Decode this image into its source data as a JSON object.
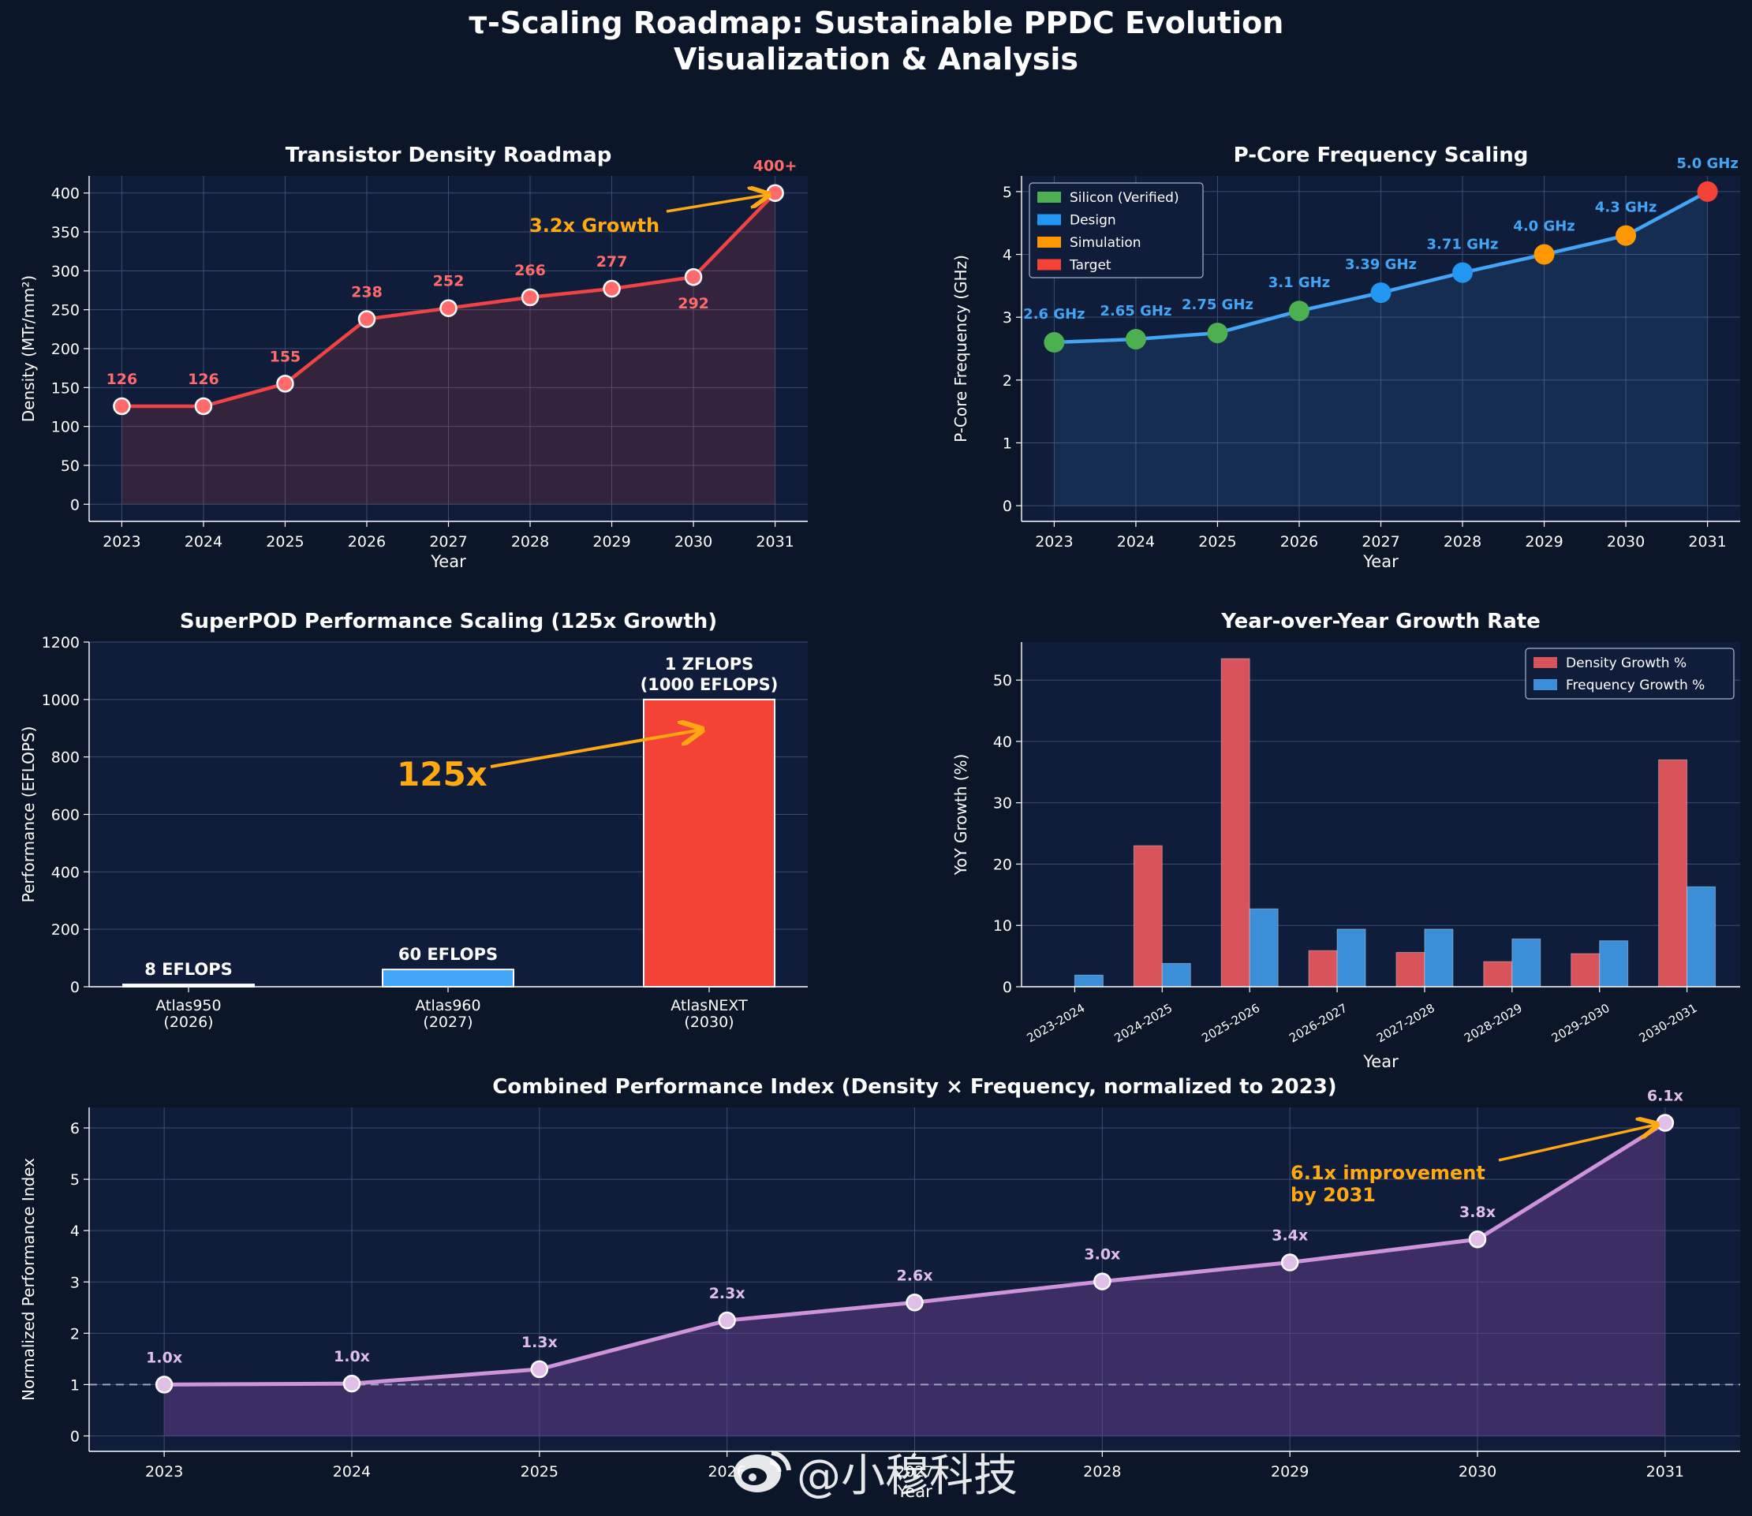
{
  "page": {
    "title_line1": "τ-Scaling Roadmap: Sustainable PPDC Evolution",
    "title_line2": "Visualization & Analysis",
    "watermark": "@小穆科技"
  },
  "colors": {
    "background": "#0b1628",
    "panel": "#0f1d3b",
    "density": "#f04343",
    "density_label": "#ff6b6b",
    "frequency": "#42a5f5",
    "silicon": "#4caf50",
    "design": "#2196f3",
    "simulation": "#ff9800",
    "target": "#f44336",
    "combined": "#ce93d8",
    "annotation": "#ffa812",
    "grid": "#3c4d6e",
    "text": "#ffffff"
  },
  "chart_data": [
    {
      "id": "density",
      "type": "line",
      "title": "Transistor Density Roadmap",
      "xlabel": "Year",
      "ylabel": "Density (MTr/mm²)",
      "x": [
        2023,
        2024,
        2025,
        2026,
        2027,
        2028,
        2029,
        2030,
        2031
      ],
      "y": [
        126,
        126,
        155,
        238,
        252,
        266,
        277,
        292,
        400
      ],
      "point_labels": [
        "126",
        "126",
        "155",
        "238",
        "252",
        "266",
        "277",
        "292",
        "400+"
      ],
      "yticks": [
        0,
        50,
        100,
        150,
        200,
        250,
        300,
        350,
        400
      ],
      "ylim": [
        -22,
        422
      ],
      "annotation": "3.2x Growth",
      "grid": true,
      "fill": true
    },
    {
      "id": "frequency",
      "type": "line",
      "title": "P-Core Frequency Scaling",
      "xlabel": "Year",
      "ylabel": "P-Core Frequency (GHz)",
      "x": [
        2023,
        2024,
        2025,
        2026,
        2027,
        2028,
        2029,
        2030,
        2031
      ],
      "y": [
        2.6,
        2.65,
        2.75,
        3.1,
        3.39,
        3.71,
        4.0,
        4.3,
        5.0
      ],
      "point_labels": [
        "2.6 GHz",
        "2.65 GHz",
        "2.75 GHz",
        "3.1 GHz",
        "3.39 GHz",
        "3.71 GHz",
        "4.0 GHz",
        "4.3 GHz",
        "5.0 GHz"
      ],
      "point_status": [
        "silicon",
        "silicon",
        "silicon",
        "silicon",
        "design",
        "design",
        "simulation",
        "simulation",
        "target"
      ],
      "legend": [
        {
          "key": "silicon",
          "label": "Silicon (Verified)"
        },
        {
          "key": "design",
          "label": "Design"
        },
        {
          "key": "simulation",
          "label": "Simulation"
        },
        {
          "key": "target",
          "label": "Target"
        }
      ],
      "legend_position": "top-left",
      "yticks": [
        0,
        1,
        2,
        3,
        4,
        5
      ],
      "ylim": [
        -0.25,
        5.25
      ],
      "grid": true,
      "fill": true
    },
    {
      "id": "superpod",
      "type": "bar",
      "title": "SuperPOD Performance Scaling (125x Growth)",
      "ylabel": "Performance (EFLOPS)",
      "categories": [
        [
          "Atlas950",
          "(2026)"
        ],
        [
          "Atlas960",
          "(2027)"
        ],
        [
          "AtlasNEXT",
          "(2030)"
        ]
      ],
      "values": [
        8,
        60,
        1000
      ],
      "bar_labels": [
        [
          "8 EFLOPS"
        ],
        [
          "60 EFLOPS"
        ],
        [
          "1 ZFLOPS",
          "(1000 EFLOPS)"
        ]
      ],
      "bar_colors": [
        "#ffffff",
        "#42a5f5",
        "#f44336"
      ],
      "yticks": [
        0,
        200,
        400,
        600,
        800,
        1000,
        1200
      ],
      "ylim": [
        0,
        1200
      ],
      "annotation": "125x",
      "grid": true
    },
    {
      "id": "yoy",
      "type": "bar",
      "title": "Year-over-Year Growth Rate",
      "xlabel": "Year",
      "ylabel": "YoY Growth (%)",
      "categories": [
        "2023-2024",
        "2024-2025",
        "2025-2026",
        "2026-2027",
        "2027-2028",
        "2028-2029",
        "2029-2030",
        "2030-2031"
      ],
      "series": [
        {
          "name": "Density Growth %",
          "values": [
            0,
            23.0,
            53.5,
            5.9,
            5.6,
            4.1,
            5.4,
            37.0
          ],
          "color": "#d9535a"
        },
        {
          "name": "Frequency Growth %",
          "values": [
            1.9,
            3.8,
            12.7,
            9.4,
            9.4,
            7.8,
            7.5,
            16.3
          ],
          "color": "#3b8ed8"
        }
      ],
      "legend_position": "top-right",
      "yticks": [
        0,
        10,
        20,
        30,
        40,
        50
      ],
      "ylim": [
        0,
        56.2
      ],
      "grid": true
    },
    {
      "id": "combined",
      "type": "line",
      "title": "Combined Performance Index (Density × Frequency, normalized to 2023)",
      "xlabel": "Year",
      "ylabel": "Normalized Performance Index",
      "x": [
        2023,
        2024,
        2025,
        2026,
        2027,
        2028,
        2029,
        2030,
        2031
      ],
      "y": [
        1.0,
        1.02,
        1.3,
        2.25,
        2.6,
        3.01,
        3.38,
        3.83,
        6.1
      ],
      "point_labels": [
        "1.0x",
        "1.0x",
        "1.3x",
        "2.3x",
        "2.6x",
        "3.0x",
        "3.4x",
        "3.8x",
        "6.1x"
      ],
      "yticks": [
        0,
        1,
        2,
        3,
        4,
        5,
        6
      ],
      "ylim": [
        -0.3,
        6.4
      ],
      "baseline": 1,
      "annotation_lines": [
        "6.1x improvement",
        "by 2031"
      ],
      "grid": true,
      "fill": true
    }
  ]
}
